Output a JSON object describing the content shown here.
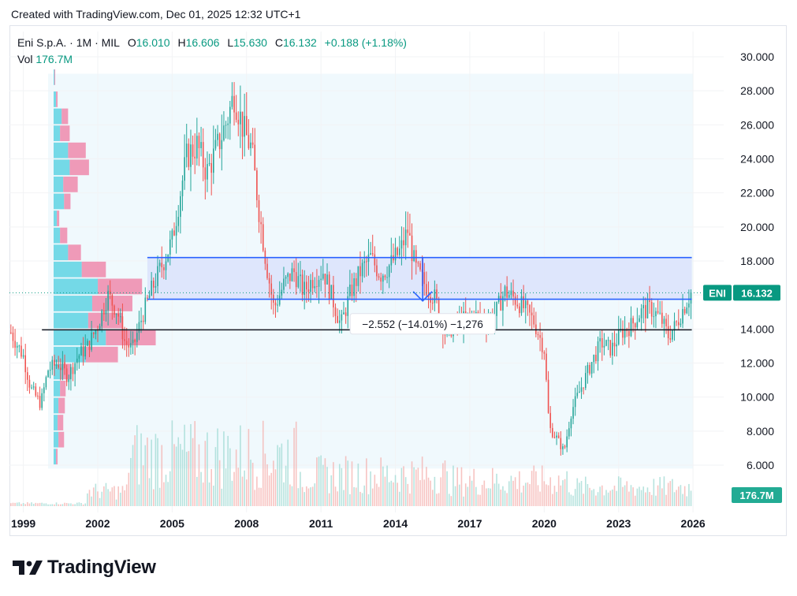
{
  "header": {
    "created_text": "Created with TradingView.com, Dec 01, 2025 12:32 UTC+1"
  },
  "legend": {
    "symbol": "Eni S.p.A.",
    "sep": "·",
    "interval": "1M",
    "exchange": "MIL",
    "o_label": "O",
    "o_value": "16.010",
    "h_label": "H",
    "h_value": "16.606",
    "l_label": "L",
    "l_value": "15.630",
    "c_label": "C",
    "c_value": "16.132",
    "change": "+0.188 (+1.18%)",
    "vol_label": "Vol",
    "vol_value": "176.7M"
  },
  "badges": {
    "ticker": "ENI",
    "price": "16.132",
    "volume": "176.7M"
  },
  "annotation": {
    "measure_text": "−2.552 (−14.01%) −1,276"
  },
  "brand": {
    "name": "TradingView"
  },
  "colors": {
    "up": "#26a69a",
    "down": "#ef5350",
    "range_fill": "#dbe3fb",
    "range_line": "#2962ff",
    "profile_up": "#5ed3e3",
    "profile_down": "#ef7aa0",
    "vol_bg": "#f0f9fd"
  },
  "chart_data": {
    "type": "candlestick",
    "interval": "1M",
    "y_ticks": [
      "6.000",
      "8.000",
      "10.000",
      "12.000",
      "14.000",
      "16.000",
      "18.000",
      "20.000",
      "22.000",
      "24.000",
      "26.000",
      "28.000",
      "30.000"
    ],
    "x_ticks": [
      "1999",
      "2002",
      "2005",
      "2008",
      "2011",
      "2014",
      "2017",
      "2020",
      "2023",
      "2026"
    ],
    "ylim": [
      5.0,
      30.5
    ],
    "last_close": 16.132,
    "last_volume": "176.7M",
    "price_path": [
      [
        1998.5,
        13.8
      ],
      [
        1999.0,
        12.4
      ],
      [
        1999.3,
        10.5
      ],
      [
        1999.7,
        9.6
      ],
      [
        2000.0,
        11.6
      ],
      [
        2000.4,
        12.0
      ],
      [
        2000.8,
        11.2
      ],
      [
        2001.2,
        12.4
      ],
      [
        2001.6,
        13.0
      ],
      [
        2002.0,
        14.2
      ],
      [
        2002.4,
        16.0
      ],
      [
        2002.8,
        15.0
      ],
      [
        2003.1,
        13.2
      ],
      [
        2003.4,
        12.8
      ],
      [
        2003.8,
        14.8
      ],
      [
        2004.2,
        16.4
      ],
      [
        2004.6,
        17.8
      ],
      [
        2005.0,
        19.2
      ],
      [
        2005.3,
        21.8
      ],
      [
        2005.6,
        24.2
      ],
      [
        2006.0,
        24.8
      ],
      [
        2006.4,
        23.2
      ],
      [
        2006.8,
        24.6
      ],
      [
        2007.2,
        26.2
      ],
      [
        2007.5,
        27.8
      ],
      [
        2007.9,
        25.6
      ],
      [
        2008.2,
        24.6
      ],
      [
        2008.5,
        21.0
      ],
      [
        2008.8,
        17.8
      ],
      [
        2009.1,
        15.2
      ],
      [
        2009.5,
        16.6
      ],
      [
        2009.9,
        17.4
      ],
      [
        2010.3,
        16.2
      ],
      [
        2010.7,
        17.0
      ],
      [
        2011.1,
        17.4
      ],
      [
        2011.5,
        15.6
      ],
      [
        2011.8,
        14.2
      ],
      [
        2012.2,
        16.2
      ],
      [
        2012.6,
        17.4
      ],
      [
        2013.0,
        18.2
      ],
      [
        2013.4,
        17.2
      ],
      [
        2013.8,
        17.8
      ],
      [
        2014.2,
        18.6
      ],
      [
        2014.5,
        19.8
      ],
      [
        2014.8,
        17.6
      ],
      [
        2015.2,
        16.6
      ],
      [
        2015.6,
        15.8
      ],
      [
        2016.0,
        13.8
      ],
      [
        2016.4,
        14.2
      ],
      [
        2016.8,
        14.6
      ],
      [
        2017.2,
        14.8
      ],
      [
        2017.6,
        14.4
      ],
      [
        2018.0,
        14.8
      ],
      [
        2018.4,
        16.2
      ],
      [
        2018.8,
        15.8
      ],
      [
        2019.2,
        15.2
      ],
      [
        2019.6,
        14.4
      ],
      [
        2020.0,
        12.8
      ],
      [
        2020.2,
        8.2
      ],
      [
        2020.5,
        7.6
      ],
      [
        2020.8,
        6.8
      ],
      [
        2021.1,
        9.2
      ],
      [
        2021.5,
        10.6
      ],
      [
        2021.9,
        12.0
      ],
      [
        2022.3,
        13.2
      ],
      [
        2022.7,
        12.8
      ],
      [
        2023.1,
        13.8
      ],
      [
        2023.5,
        14.2
      ],
      [
        2023.9,
        15.0
      ],
      [
        2024.3,
        15.2
      ],
      [
        2024.7,
        14.6
      ],
      [
        2025.0,
        13.6
      ],
      [
        2025.3,
        14.2
      ],
      [
        2025.6,
        15.2
      ],
      [
        2025.92,
        16.132
      ]
    ],
    "horizontal_lines": [
      {
        "price": 18.2,
        "from_year": 2004.0,
        "to_year": 2025.95
      },
      {
        "price": 15.75,
        "from_year": 2004.0,
        "to_year": 2025.95
      },
      {
        "price": 13.95,
        "from_year": 1999.75,
        "to_year": 2025.95
      }
    ],
    "measure": {
      "from_price": 18.2,
      "to_price": 15.648,
      "year": 2015.1,
      "change": -2.552,
      "change_pct": -14.01,
      "bars": -1276
    },
    "volume_profile": [
      {
        "price": 28.8,
        "up": 1,
        "down": 1
      },
      {
        "price": 27.5,
        "up": 3,
        "down": 2
      },
      {
        "price": 26.5,
        "up": 10,
        "down": 8
      },
      {
        "price": 25.5,
        "up": 8,
        "down": 12
      },
      {
        "price": 24.5,
        "up": 18,
        "down": 22
      },
      {
        "price": 23.5,
        "up": 20,
        "down": 24
      },
      {
        "price": 22.5,
        "up": 12,
        "down": 18
      },
      {
        "price": 21.5,
        "up": 13,
        "down": 8
      },
      {
        "price": 20.5,
        "up": 4,
        "down": 3
      },
      {
        "price": 19.5,
        "up": 8,
        "down": 9
      },
      {
        "price": 18.5,
        "up": 18,
        "down": 16
      },
      {
        "price": 17.5,
        "up": 35,
        "down": 30
      },
      {
        "price": 16.5,
        "up": 55,
        "down": 55
      },
      {
        "price": 15.5,
        "up": 48,
        "down": 50
      },
      {
        "price": 14.5,
        "up": 43,
        "down": 43
      },
      {
        "price": 13.5,
        "up": 65,
        "down": 62
      },
      {
        "price": 12.5,
        "up": 40,
        "down": 40
      },
      {
        "price": 11.5,
        "up": 10,
        "down": 12
      },
      {
        "price": 10.5,
        "up": 8,
        "down": 7
      },
      {
        "price": 9.5,
        "up": 6,
        "down": 8
      },
      {
        "price": 8.5,
        "up": 5,
        "down": 7
      },
      {
        "price": 7.5,
        "up": 6,
        "down": 7
      },
      {
        "price": 6.5,
        "up": 3,
        "down": 2
      }
    ]
  }
}
